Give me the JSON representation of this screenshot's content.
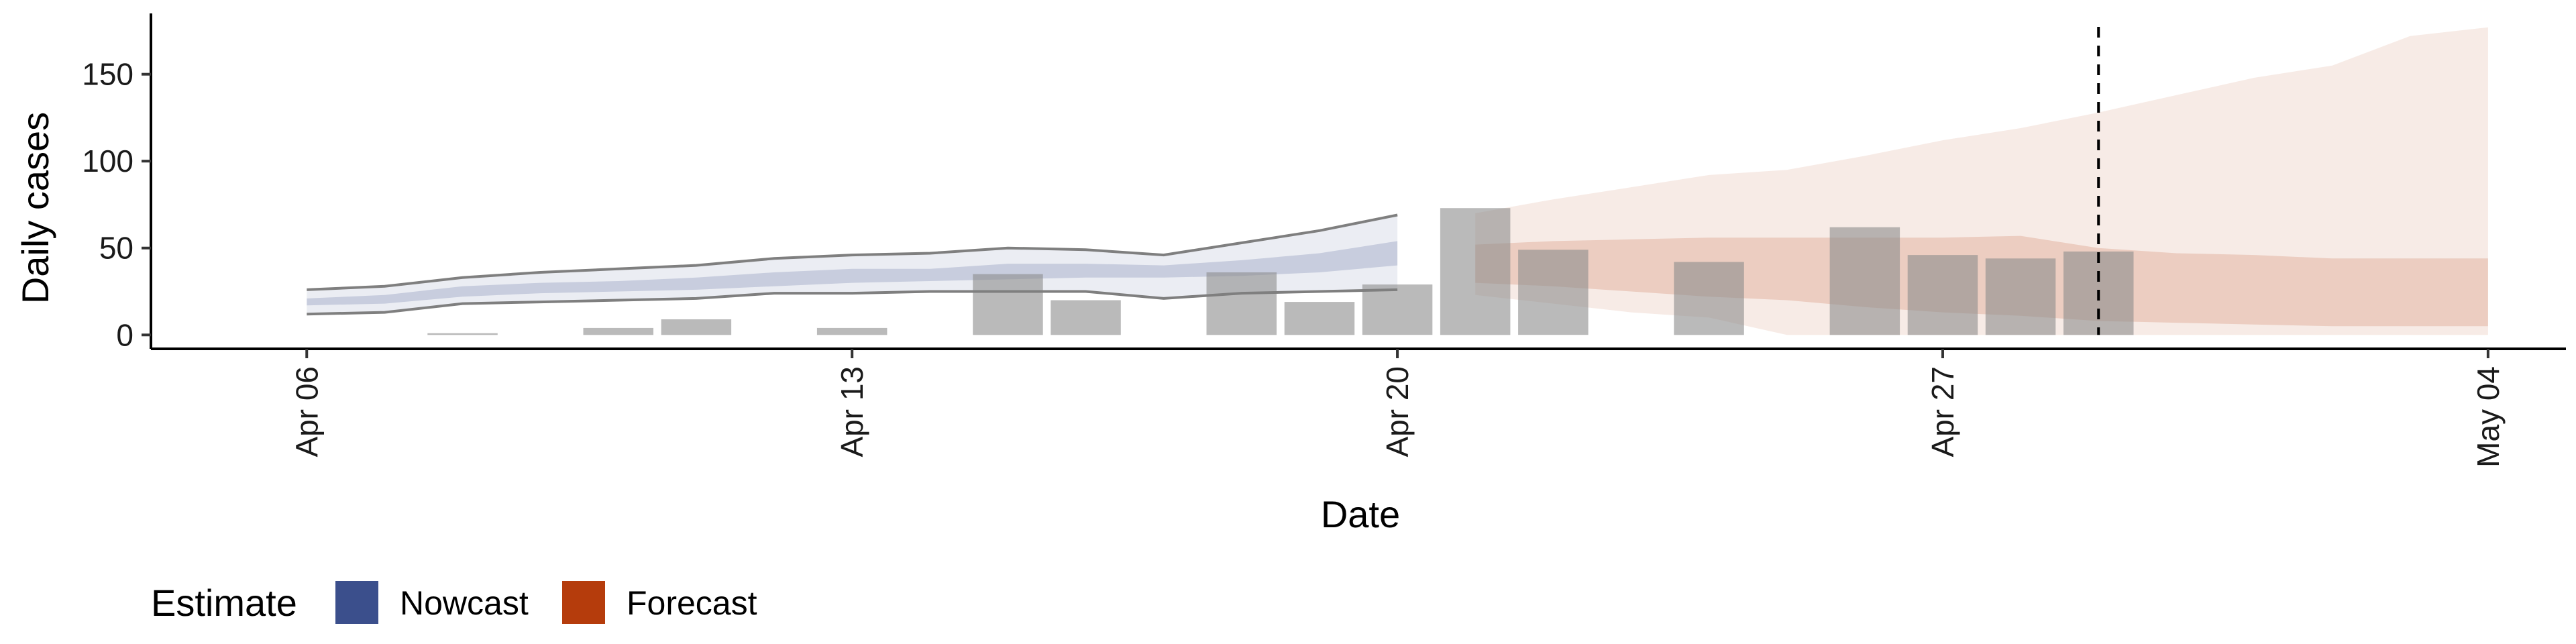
{
  "chart_data": {
    "type": "bar",
    "title": "",
    "xlabel": "Date",
    "ylabel": "Daily cases",
    "xlim": [
      "2020-04-04",
      "2020-05-05"
    ],
    "ylim": [
      -8,
      185
    ],
    "x_ticks": [
      {
        "date": "2020-04-06",
        "label": "Apr 06"
      },
      {
        "date": "2020-04-13",
        "label": "Apr 13"
      },
      {
        "date": "2020-04-20",
        "label": "Apr 20"
      },
      {
        "date": "2020-04-27",
        "label": "Apr 27"
      },
      {
        "date": "2020-05-04",
        "label": "May 04"
      }
    ],
    "y_ticks": [
      0,
      50,
      100,
      150
    ],
    "reference_line": {
      "date": "2020-04-29",
      "style": "dashed"
    },
    "bars": [
      {
        "date": "2020-04-08",
        "value": 1
      },
      {
        "date": "2020-04-10",
        "value": 4
      },
      {
        "date": "2020-04-11",
        "value": 9
      },
      {
        "date": "2020-04-13",
        "value": 4
      },
      {
        "date": "2020-04-15",
        "value": 35
      },
      {
        "date": "2020-04-16",
        "value": 20
      },
      {
        "date": "2020-04-18",
        "value": 36
      },
      {
        "date": "2020-04-19",
        "value": 19
      },
      {
        "date": "2020-04-20",
        "value": 29
      },
      {
        "date": "2020-04-21",
        "value": 73
      },
      {
        "date": "2020-04-22",
        "value": 49
      },
      {
        "date": "2020-04-24",
        "value": 42
      },
      {
        "date": "2020-04-26",
        "value": 62
      },
      {
        "date": "2020-04-27",
        "value": 46
      },
      {
        "date": "2020-04-28",
        "value": 44
      },
      {
        "date": "2020-04-29",
        "value": 48
      }
    ],
    "nowcast": {
      "name": "Nowcast",
      "color": "#3B4F8C",
      "dates": [
        "2020-04-06",
        "2020-04-07",
        "2020-04-08",
        "2020-04-09",
        "2020-04-10",
        "2020-04-11",
        "2020-04-12",
        "2020-04-13",
        "2020-04-14",
        "2020-04-15",
        "2020-04-16",
        "2020-04-17",
        "2020-04-18",
        "2020-04-19",
        "2020-04-20"
      ],
      "lower_outer": [
        12,
        13,
        18,
        19,
        20,
        21,
        24,
        24,
        25,
        25,
        25,
        21,
        24,
        25,
        26
      ],
      "upper_outer": [
        26,
        28,
        33,
        36,
        38,
        40,
        44,
        46,
        47,
        50,
        49,
        46,
        53,
        60,
        69
      ],
      "lower_inner": [
        17,
        18,
        22,
        24,
        25,
        26,
        28,
        30,
        31,
        32,
        33,
        33,
        34,
        36,
        40
      ],
      "upper_inner": [
        21,
        23,
        28,
        30,
        31,
        33,
        36,
        38,
        38,
        41,
        41,
        40,
        43,
        47,
        54
      ]
    },
    "forecast": {
      "name": "Forecast",
      "color": "#B53C0C",
      "dates": [
        "2020-04-21",
        "2020-04-22",
        "2020-04-23",
        "2020-04-24",
        "2020-04-25",
        "2020-04-26",
        "2020-04-27",
        "2020-04-28",
        "2020-04-29",
        "2020-04-30",
        "2020-05-01",
        "2020-05-02",
        "2020-05-03",
        "2020-05-04"
      ],
      "lower_outer": [
        23,
        18,
        13,
        10,
        0,
        0,
        0,
        0,
        0,
        0,
        0,
        0,
        0,
        0
      ],
      "upper_outer": [
        70,
        78,
        85,
        92,
        95,
        103,
        112,
        119,
        128,
        138,
        148,
        155,
        172,
        177
      ],
      "lower_inner": [
        30,
        28,
        25,
        22,
        20,
        16,
        13,
        11,
        8,
        7,
        6,
        5,
        5,
        5
      ],
      "upper_inner": [
        52,
        54,
        55,
        56,
        56,
        56,
        56,
        57,
        50,
        47,
        46,
        44,
        44,
        44
      ]
    },
    "legend": {
      "title": "Estimate",
      "position": "bottom-left",
      "items": [
        {
          "label": "Nowcast",
          "color": "#3B4F8C"
        },
        {
          "label": "Forecast",
          "color": "#B53C0C"
        }
      ]
    }
  }
}
